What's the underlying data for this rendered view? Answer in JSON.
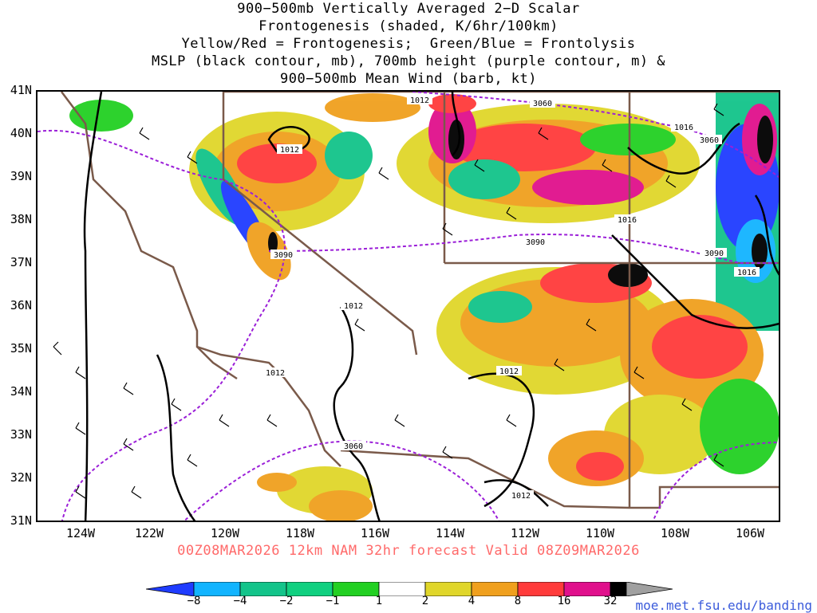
{
  "title": {
    "line1": "900−500mb Vertically Averaged 2−D Scalar",
    "line2": "Frontogenesis (shaded, K/6hr/100km)",
    "line3": "Yellow/Red = Frontogenesis;  Green/Blue = Frontolysis",
    "line4": "MSLP (black contour, mb), 700mb height (purple contour, m) &",
    "line5": "900−500mb Mean Wind (barb, kt)"
  },
  "valid_line": "00Z08MAR2026 12km NAM 32hr forecast Valid 08Z09MAR2026",
  "credit": "moe.met.fsu.edu/banding",
  "lat_labels": [
    "41N",
    "40N",
    "39N",
    "38N",
    "37N",
    "36N",
    "35N",
    "34N",
    "33N",
    "32N",
    "31N"
  ],
  "lon_labels": [
    "124W",
    "122W",
    "120W",
    "118W",
    "116W",
    "114W",
    "112W",
    "110W",
    "108W",
    "106W"
  ],
  "contour_labels": {
    "mslp": [
      "1012",
      "1012",
      "1012",
      "1012",
      "1016",
      "1016",
      "1016",
      "1012",
      "1012"
    ],
    "height": [
      "3060",
      "3060",
      "3090",
      "3090",
      "3090",
      "3060"
    ]
  },
  "colorbar": {
    "labels": [
      "−8",
      "−4",
      "−2",
      "−1",
      "1",
      "2",
      "4",
      "8",
      "16",
      "32"
    ],
    "colors": [
      "#1f3cff",
      "#12b4ff",
      "#13c48a",
      "#10d080",
      "#22d022",
      "#ffffff",
      "#e0d62a",
      "#f0a01e",
      "#ff6a14",
      "#ff3b3b",
      "#e0108c",
      "#000000",
      "#a0a0a0"
    ]
  },
  "colors": {
    "mslp_contour": "#000000",
    "height_contour": "#9b1fd8",
    "state_borders": "#7a5a4a",
    "valid_text": "#ff6a6a",
    "credit_text": "#3b5bdb"
  }
}
